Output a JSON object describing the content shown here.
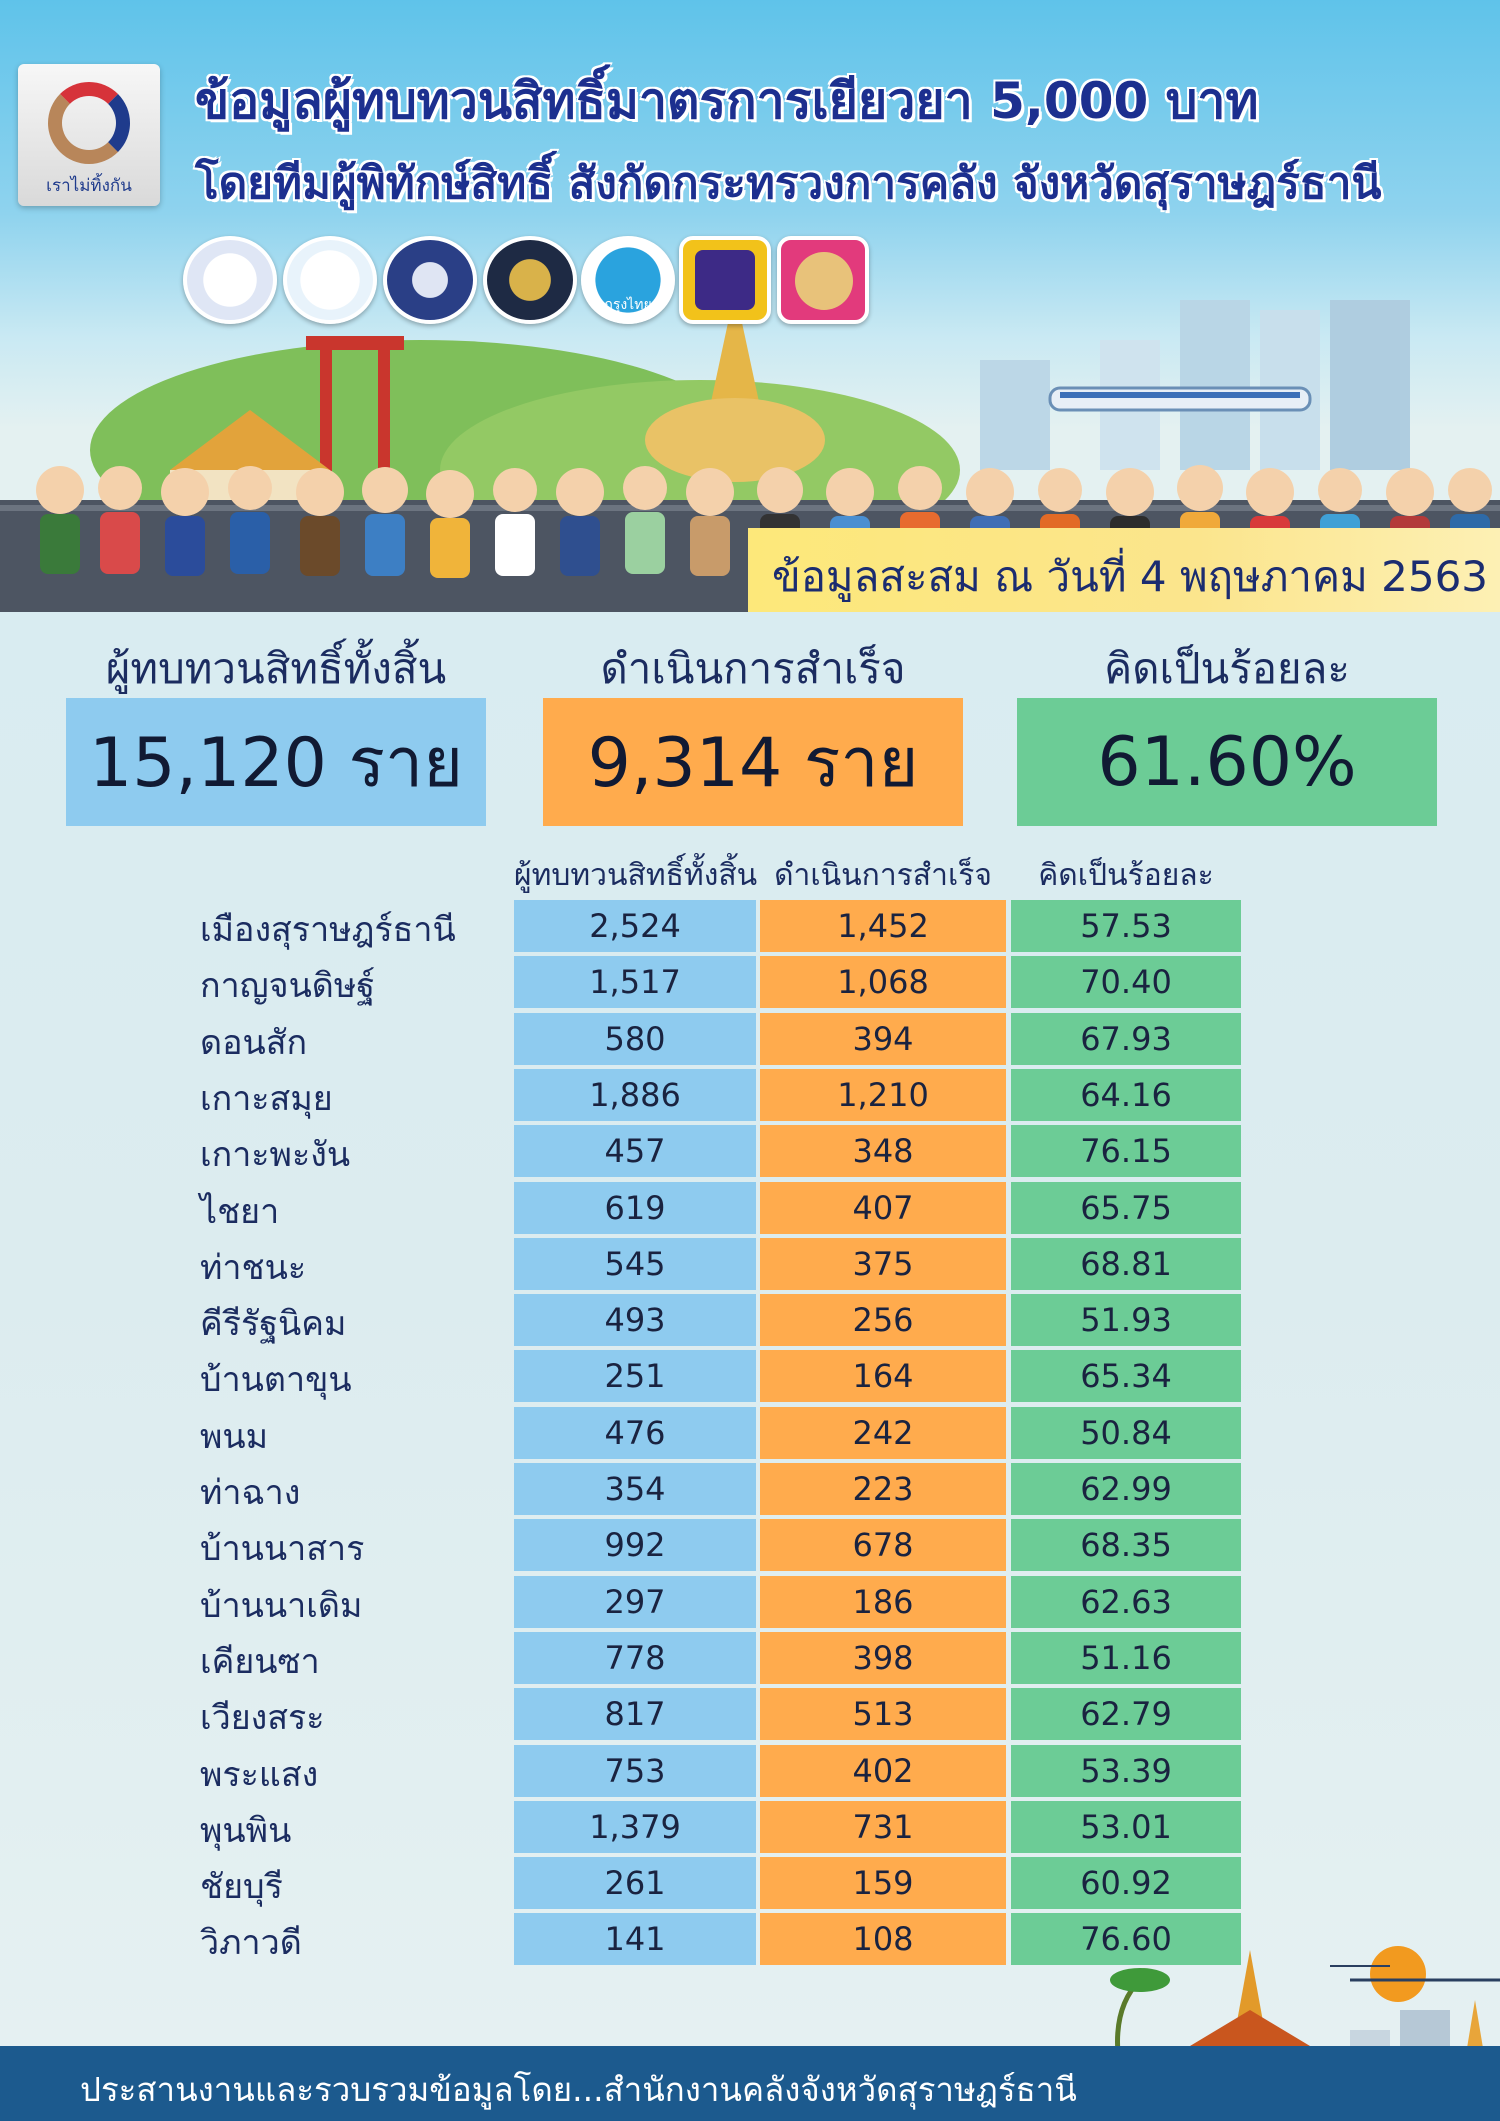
{
  "header": {
    "logo_text": "เราไม่ทิ้งกัน",
    "title_line1": "ข้อมูลผู้ทบทวนสิทธิ์มาตรการเยียวยา 5,000 บาท",
    "title_line2": "โดยทีมผู้พิทักษ์สิทธิ์ สังกัดกระทรวงการคลัง จังหวัดสุราษฎร์ธานี",
    "seal_icons": [
      "comptroller-general-seal-icon",
      "treasury-seal-icon",
      "ministry-of-finance-seal-icon",
      "excise-seal-icon",
      "krungthai-bank-icon",
      "government-savings-bank-icon",
      "provincial-finance-seal-icon"
    ],
    "seal_colors": [
      "#2f4aa0",
      "#5aa5d6",
      "#2a3f86",
      "#7a5a12",
      "#2aa3de",
      "#3d2a86",
      "#e23a7c"
    ],
    "seal_sublabels": {
      "krungthai": "กรุงไทย"
    },
    "date_text": "ข้อมูลสะสม ณ วันที่ 4 พฤษภาคม 2563"
  },
  "summary": {
    "total_label": "ผู้ทบทวนสิทธิ์ทั้งสิ้น",
    "total_value": "15,120 ราย",
    "done_label": "ดำเนินการสำเร็จ",
    "done_value": "9,314 ราย",
    "pct_label": "คิดเป็นร้อยละ",
    "pct_value": "61.60%"
  },
  "table": {
    "headers": [
      "ผู้ทบทวนสิทธิ์ทั้งสิ้น",
      "ดำเนินการสำเร็จ",
      "คิดเป็นร้อยละ"
    ],
    "rows": [
      {
        "district": "เมืองสุราษฎร์ธานี",
        "total": "2,524",
        "done": "1,452",
        "pct": "57.53"
      },
      {
        "district": "กาญจนดิษฐ์",
        "total": "1,517",
        "done": "1,068",
        "pct": "70.40"
      },
      {
        "district": "ดอนสัก",
        "total": "580",
        "done": "394",
        "pct": "67.93"
      },
      {
        "district": "เกาะสมุย",
        "total": "1,886",
        "done": "1,210",
        "pct": "64.16"
      },
      {
        "district": "เกาะพะงัน",
        "total": "457",
        "done": "348",
        "pct": "76.15"
      },
      {
        "district": "ไชยา",
        "total": "619",
        "done": "407",
        "pct": "65.75"
      },
      {
        "district": "ท่าชนะ",
        "total": "545",
        "done": "375",
        "pct": "68.81"
      },
      {
        "district": "คีรีรัฐนิคม",
        "total": "493",
        "done": "256",
        "pct": "51.93"
      },
      {
        "district": "บ้านตาขุน",
        "total": "251",
        "done": "164",
        "pct": "65.34"
      },
      {
        "district": "พนม",
        "total": "476",
        "done": "242",
        "pct": "50.84"
      },
      {
        "district": "ท่าฉาง",
        "total": "354",
        "done": "223",
        "pct": "62.99"
      },
      {
        "district": "บ้านนาสาร",
        "total": "992",
        "done": "678",
        "pct": "68.35"
      },
      {
        "district": "บ้านนาเดิม",
        "total": "297",
        "done": "186",
        "pct": "62.63"
      },
      {
        "district": "เคียนซา",
        "total": "778",
        "done": "398",
        "pct": "51.16"
      },
      {
        "district": "เวียงสระ",
        "total": "817",
        "done": "513",
        "pct": "62.79"
      },
      {
        "district": "พระแสง",
        "total": "753",
        "done": "402",
        "pct": "53.39"
      },
      {
        "district": "พุนพิน",
        "total": "1,379",
        "done": "731",
        "pct": "53.01"
      },
      {
        "district": "ชัยบุรี",
        "total": "261",
        "done": "159",
        "pct": "60.92"
      },
      {
        "district": "วิภาวดี",
        "total": "141",
        "done": "108",
        "pct": "76.60"
      }
    ]
  },
  "footer": {
    "text": "ประสานงานและรวบรวมข้อมูลโดย...สำนักงานคลังจังหวัดสุราษฎร์ธานี"
  },
  "colors": {
    "title": "#1c2f8f",
    "blue_cell": "#8ecbef",
    "orange_cell": "#ffab4d",
    "green_cell": "#6ccc96",
    "footer_bg": "#1c5a8e",
    "date_strip": "#fde87a"
  }
}
